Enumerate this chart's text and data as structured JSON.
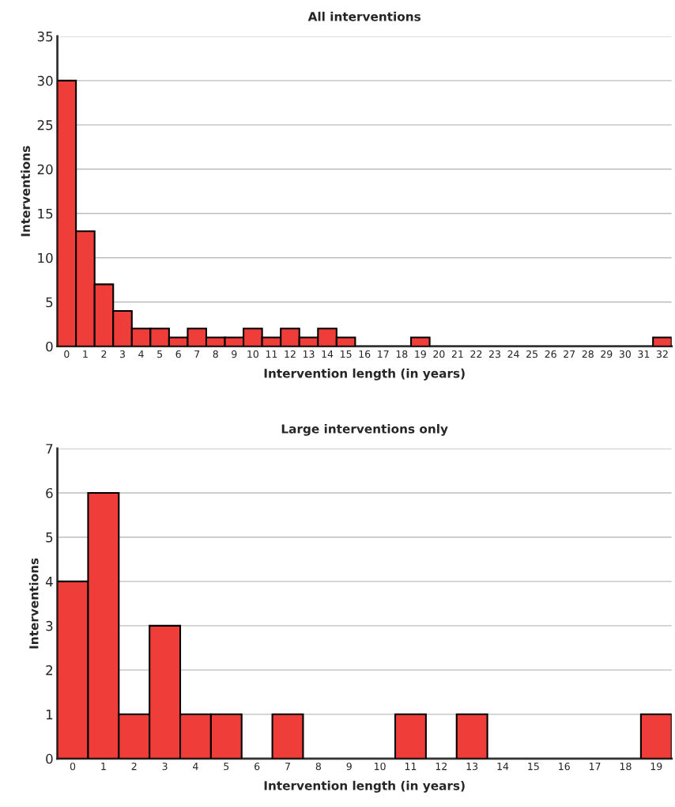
{
  "chart_data": [
    {
      "type": "bar",
      "title": "All interventions",
      "xlabel": "Intervention length (in years)",
      "ylabel": "Interventions",
      "categories": [
        "0",
        "1",
        "2",
        "3",
        "4",
        "5",
        "6",
        "7",
        "8",
        "9",
        "10",
        "11",
        "12",
        "13",
        "14",
        "15",
        "16",
        "17",
        "18",
        "19",
        "20",
        "21",
        "22",
        "23",
        "24",
        "25",
        "26",
        "27",
        "28",
        "29",
        "30",
        "31",
        "32"
      ],
      "values": [
        30,
        13,
        7,
        4,
        2,
        2,
        1,
        2,
        1,
        1,
        2,
        1,
        2,
        1,
        2,
        1,
        0,
        0,
        0,
        1,
        0,
        0,
        0,
        0,
        0,
        0,
        0,
        0,
        0,
        0,
        0,
        0,
        1
      ],
      "color": "#ef3e3a",
      "ylim": [
        0,
        35
      ],
      "yticks": [
        0,
        5,
        10,
        15,
        20,
        25,
        30,
        35
      ],
      "grid": "y"
    },
    {
      "type": "bar",
      "title": "Large interventions only",
      "xlabel": "Intervention length (in years)",
      "ylabel": "Interventions",
      "categories": [
        "0",
        "1",
        "2",
        "3",
        "4",
        "5",
        "6",
        "7",
        "8",
        "9",
        "10",
        "11",
        "12",
        "13",
        "14",
        "15",
        "16",
        "17",
        "18",
        "19"
      ],
      "values": [
        4,
        6,
        1,
        3,
        1,
        1,
        0,
        1,
        0,
        0,
        0,
        1,
        0,
        1,
        0,
        0,
        0,
        0,
        0,
        1
      ],
      "color": "#ef3e3a",
      "ylim": [
        0,
        7
      ],
      "yticks": [
        0,
        1,
        2,
        3,
        4,
        5,
        6,
        7
      ],
      "grid": "y"
    }
  ]
}
